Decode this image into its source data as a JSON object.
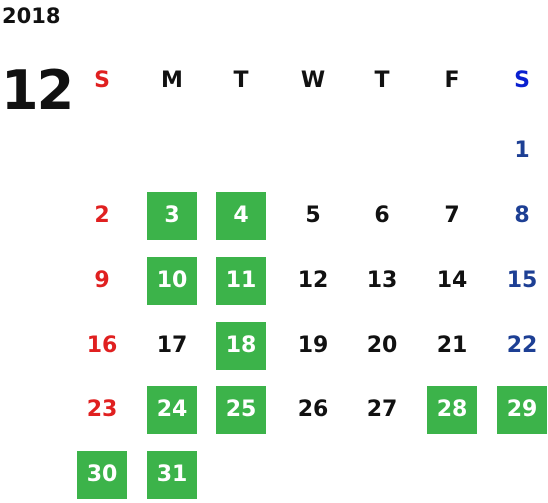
{
  "calendar": {
    "year": "2018",
    "month": "12",
    "weekdays": [
      {
        "label": "S",
        "color": "#e02020"
      },
      {
        "label": "M",
        "color": "#111111"
      },
      {
        "label": "T",
        "color": "#111111"
      },
      {
        "label": "W",
        "color": "#111111"
      },
      {
        "label": "T",
        "color": "#111111"
      },
      {
        "label": "F",
        "color": "#111111"
      },
      {
        "label": "S",
        "color": "#0a20d0"
      }
    ],
    "highlight_color": "#3cb34a",
    "days": [
      {
        "day": "1",
        "highlighted": false
      },
      {
        "day": "2",
        "highlighted": false
      },
      {
        "day": "3",
        "highlighted": true
      },
      {
        "day": "4",
        "highlighted": true
      },
      {
        "day": "5",
        "highlighted": false
      },
      {
        "day": "6",
        "highlighted": false
      },
      {
        "day": "7",
        "highlighted": false
      },
      {
        "day": "8",
        "highlighted": false
      },
      {
        "day": "9",
        "highlighted": false
      },
      {
        "day": "10",
        "highlighted": true
      },
      {
        "day": "11",
        "highlighted": true
      },
      {
        "day": "12",
        "highlighted": false
      },
      {
        "day": "13",
        "highlighted": false
      },
      {
        "day": "14",
        "highlighted": false
      },
      {
        "day": "15",
        "highlighted": false
      },
      {
        "day": "16",
        "highlighted": false
      },
      {
        "day": "17",
        "highlighted": false
      },
      {
        "day": "18",
        "highlighted": true
      },
      {
        "day": "19",
        "highlighted": false
      },
      {
        "day": "20",
        "highlighted": false
      },
      {
        "day": "21",
        "highlighted": false
      },
      {
        "day": "22",
        "highlighted": false
      },
      {
        "day": "23",
        "highlighted": false
      },
      {
        "day": "24",
        "highlighted": true
      },
      {
        "day": "25",
        "highlighted": true
      },
      {
        "day": "26",
        "highlighted": false
      },
      {
        "day": "27",
        "highlighted": false
      },
      {
        "day": "28",
        "highlighted": true
      },
      {
        "day": "29",
        "highlighted": true
      },
      {
        "day": "30",
        "highlighted": true
      },
      {
        "day": "31",
        "highlighted": true
      }
    ]
  }
}
